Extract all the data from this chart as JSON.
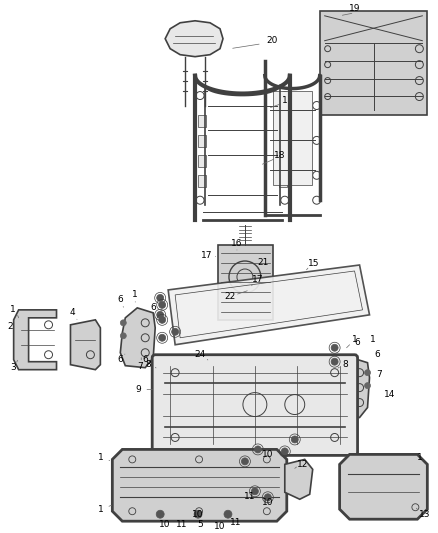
{
  "bg_color": "#ffffff",
  "fig_width": 4.38,
  "fig_height": 5.33,
  "dpi": 100,
  "lc": "#404040",
  "label_fontsize": 6.5,
  "label_color": "#000000",
  "line_color": "#888888",
  "line_width": 0.5
}
